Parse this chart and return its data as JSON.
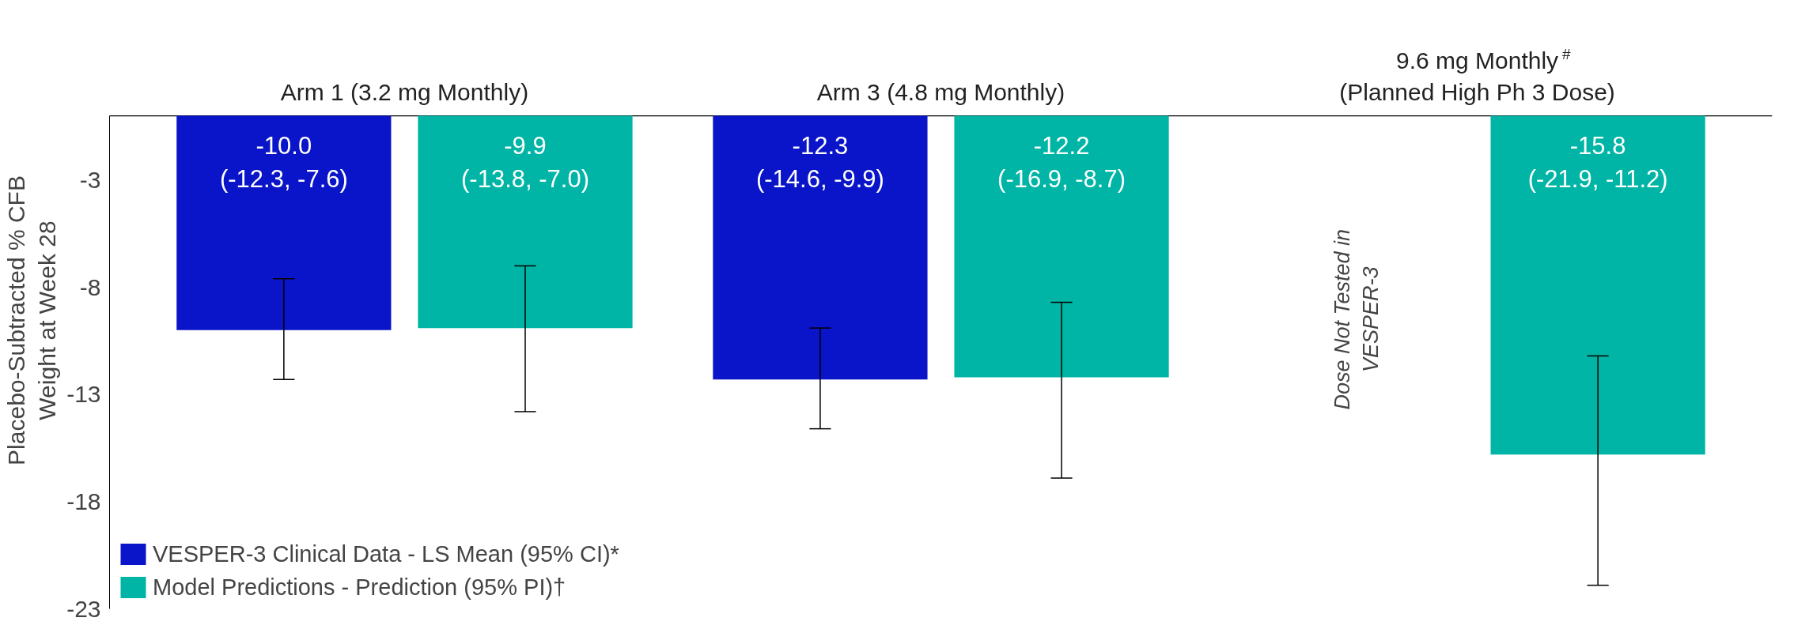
{
  "chart_data": {
    "type": "bar",
    "categories": [
      "Arm 1 (3.2 mg Monthly)",
      "Arm 3 (4.8 mg Monthly)",
      "9.6 mg Monthly$^{#}$\n(Planned High Ph 3 Dose)"
    ],
    "ylabel": "Placebo-Subtracted % CFB\nWeight at Week 28",
    "ylim": [
      -23,
      0
    ],
    "yticks": [
      -3,
      -8,
      -13,
      -18,
      -23
    ],
    "grid": false,
    "legend": "bottom left",
    "annotations": [
      "Dose Not Tested in\nVESPER-3"
    ],
    "series": [
      {
        "name": "VESPER-3 Clinical Data - LS Mean (95% CI)*",
        "color": "#0a14c8",
        "values": [
          -10.0,
          -12.3,
          null
        ],
        "errors": [
          [
            -12.3,
            -7.6
          ],
          [
            -14.6,
            -9.9
          ],
          null
        ],
        "value_labels": [
          "-10.0\n(-12.3, -7.6)",
          "-12.3\n(-14.6, -9.9)",
          null
        ]
      },
      {
        "name": "Model Predictions - Prediction (95% PI)†",
        "color": "#00b5a5",
        "values": [
          -9.9,
          -12.2,
          -15.8
        ],
        "errors": [
          [
            -13.8,
            -7.0
          ],
          [
            -16.9,
            -8.7
          ],
          [
            -21.9,
            -11.2
          ]
        ],
        "value_labels": [
          "-9.9\n(-13.8, -7.0)",
          "-12.2\n(-16.9, -8.7)",
          "-15.8\n(-21.9, -11.2)"
        ]
      }
    ]
  }
}
